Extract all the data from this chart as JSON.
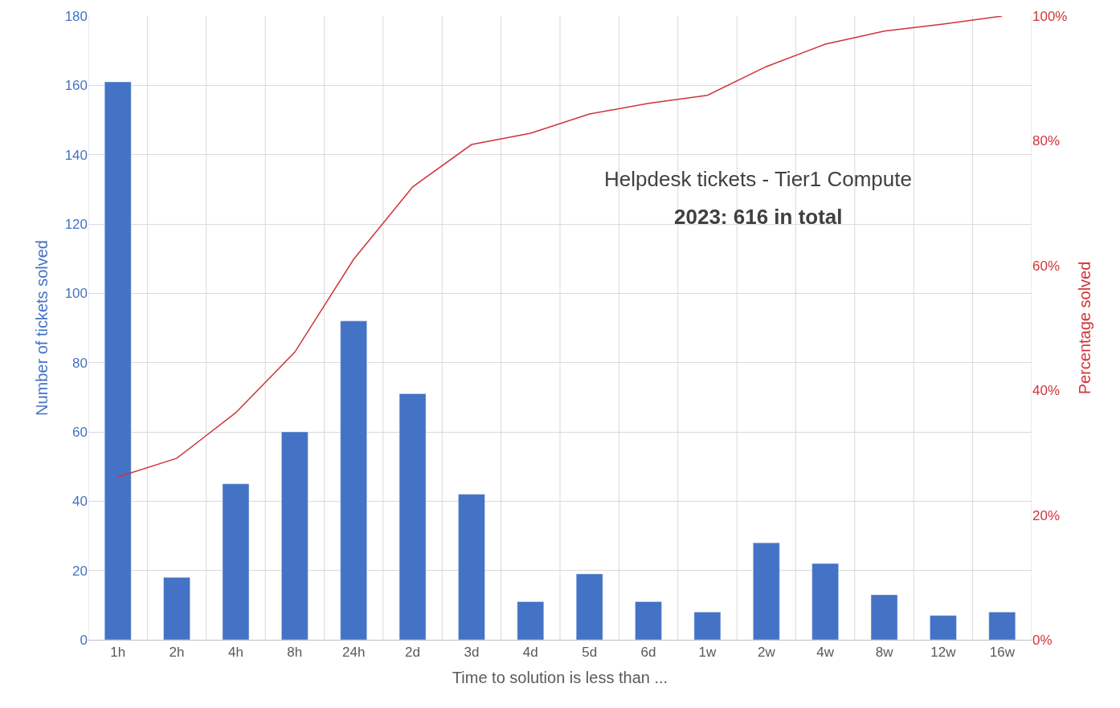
{
  "chart_data": {
    "type": "bar",
    "title": "Helpdesk tickets - Tier1 Compute",
    "subtitle": "2023: 616 in total",
    "xlabel": "Time to solution is less than ...",
    "ylabel": "Number of tickets solved",
    "y2label": "Percentage solved",
    "categories": [
      "1h",
      "2h",
      "4h",
      "8h",
      "24h",
      "2d",
      "3d",
      "4d",
      "5d",
      "6d",
      "1w",
      "2w",
      "4w",
      "8w",
      "12w",
      "16w"
    ],
    "series": [
      {
        "color": "#4472c4",
        "values": [
          161,
          18,
          45,
          60,
          92,
          71,
          42,
          11,
          19,
          11,
          8,
          28,
          22,
          13,
          7,
          8
        ]
      },
      {
        "type": "line",
        "axis": "y2",
        "color": "#d0343a",
        "values": [
          26.1,
          29.1,
          36.4,
          46.1,
          61.0,
          72.6,
          79.4,
          81.2,
          84.3,
          86.0,
          87.3,
          91.9,
          95.5,
          97.6,
          98.7,
          100
        ]
      }
    ],
    "ylim": [
      0,
      180
    ],
    "yticks": [
      0,
      20,
      40,
      60,
      80,
      100,
      120,
      140,
      160,
      180
    ],
    "y2lim": [
      0,
      100
    ],
    "y2ticks": [
      {
        "value": 0,
        "label": "0%"
      },
      {
        "value": 20,
        "label": "20%"
      },
      {
        "value": 40,
        "label": "40%"
      },
      {
        "value": 60,
        "label": "60%"
      },
      {
        "value": 80,
        "label": "80%"
      },
      {
        "value": 100,
        "label": "100%"
      }
    ],
    "grid": true,
    "marker": "none",
    "line_style": "solid"
  }
}
